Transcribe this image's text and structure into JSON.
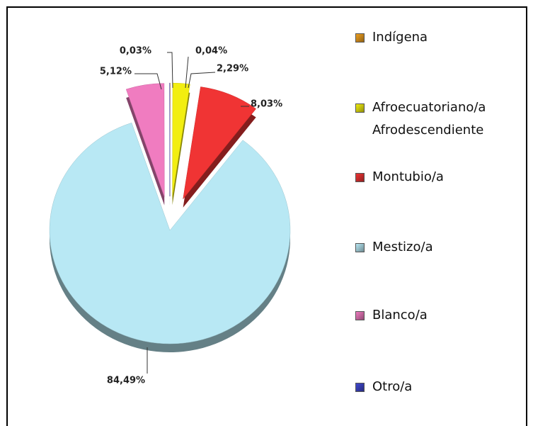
{
  "chart_data": {
    "type": "pie",
    "categories": [
      "Indígena",
      "Afroecuatoriano/a Afrodescendiente",
      "Montubio/a",
      "Mestizo/a",
      "Blanco/a",
      "Otro/a"
    ],
    "values": [
      0.04,
      2.29,
      8.03,
      84.49,
      5.12,
      0.03
    ],
    "value_labels": [
      "0,04%",
      "2,29%",
      "8,03%",
      "84,49%",
      "5,12%",
      "0,03%"
    ],
    "colors": [
      "#f0a020",
      "#f2ee10",
      "#f03434",
      "#b8e8f4",
      "#f07cc0",
      "#4048d0"
    ],
    "legend": "right"
  }
}
